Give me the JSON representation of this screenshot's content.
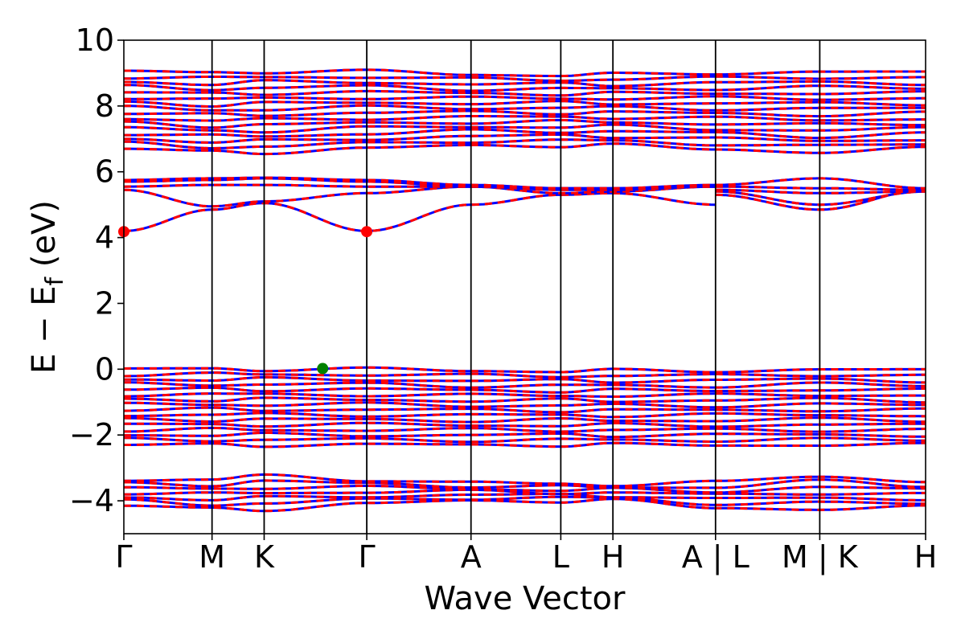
{
  "chart_data": {
    "type": "line",
    "xlabel": "Wave Vector",
    "ylabel": "E − E",
    "ylabel_subscript": "f",
    "ylabel_unit": " (eV)",
    "ylim": [
      -5,
      10
    ],
    "yticks": [
      -4,
      -2,
      0,
      2,
      4,
      6,
      8,
      10
    ],
    "ytick_labels": [
      "−4",
      "−2",
      "0",
      "2",
      "4",
      "6",
      "8",
      "10"
    ],
    "xlim": [
      0,
      1
    ],
    "high_symmetry_points": [
      {
        "label": "Γ",
        "x": 0.0
      },
      {
        "label": "M",
        "x": 0.11
      },
      {
        "label": "K",
        "x": 0.175
      },
      {
        "label": "Γ",
        "x": 0.303
      },
      {
        "label": "A",
        "x": 0.433
      },
      {
        "label": "L",
        "x": 0.545
      },
      {
        "label": "H",
        "x": 0.61
      },
      {
        "label": "A | L",
        "x": 0.738
      },
      {
        "label": "M | K",
        "x": 0.868
      },
      {
        "label": "H",
        "x": 1.0
      }
    ],
    "series": [
      {
        "color": "#0000ff",
        "style": "solid"
      },
      {
        "color": "#ff0000",
        "style": "dashed"
      }
    ],
    "bands": {
      "conduction_dense": {
        "lower": [
          6.7,
          6.6,
          6.6,
          6.7,
          6.8,
          6.8,
          6.8,
          6.7,
          6.6,
          6.7
        ],
        "upper": [
          9.05,
          9.0,
          9.05,
          9.05,
          8.95,
          8.95,
          8.95,
          9.0,
          9.05,
          9.0
        ]
      },
      "conduction_isolated": [
        [
          4.2,
          4.85,
          5.05,
          4.2,
          5.0,
          5.3,
          5.35,
          5.0
        ],
        [
          5.45,
          4.95,
          5.1,
          5.35,
          5.55,
          5.35,
          5.4,
          5.55
        ],
        [
          5.55,
          5.6,
          5.6,
          5.55,
          5.55,
          5.45,
          5.45,
          5.55
        ],
        [
          5.7,
          5.75,
          5.8,
          5.7,
          5.55,
          5.5,
          5.5,
          5.55
        ],
        [
          5.75,
          5.8,
          5.82,
          5.75,
          5.6,
          5.5,
          5.5,
          5.6
        ]
      ],
      "conduction_right": [
        [
          5.3,
          4.85,
          5.45
        ],
        [
          5.4,
          5.0,
          5.4
        ],
        [
          5.45,
          5.35,
          5.4
        ],
        [
          5.55,
          5.5,
          5.45
        ],
        [
          5.6,
          5.8,
          5.5
        ]
      ],
      "valence_upper": {
        "lower": [
          -2.3,
          -2.3,
          -2.3,
          -2.3,
          -2.3,
          -2.3,
          -2.3,
          -2.3,
          -2.3,
          -2.3
        ],
        "upper": [
          0.0,
          0.0,
          0.0,
          0.0,
          -0.05,
          -0.05,
          -0.05,
          -0.05,
          0.0,
          -0.05
        ]
      },
      "valence_lower": {
        "lower": [
          -4.15,
          -4.25,
          -4.25,
          -4.1,
          -4.0,
          -4.0,
          -4.0,
          -4.2,
          -4.25,
          -4.2
        ],
        "upper": [
          -3.35,
          -3.35,
          -3.25,
          -3.35,
          -3.45,
          -3.5,
          -3.5,
          -3.45,
          -3.25,
          -3.4
        ]
      }
    },
    "markers": [
      {
        "x": 0.0,
        "y": 4.18,
        "color": "#ff0000",
        "kind": "CBM"
      },
      {
        "x": 0.303,
        "y": 4.18,
        "color": "#ff0000",
        "kind": "CBM"
      },
      {
        "x": 0.248,
        "y": 0.02,
        "color": "#008000",
        "kind": "VBM"
      }
    ]
  }
}
